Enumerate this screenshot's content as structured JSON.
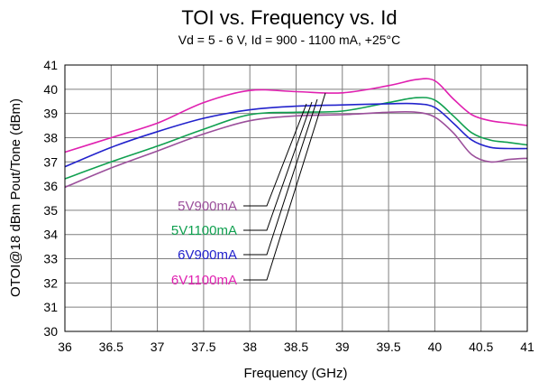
{
  "chart_data": {
    "type": "line",
    "title": "TOI vs. Frequency vs. Id",
    "subtitle": "Vd = 5 - 6 V, Id = 900 - 1100 mA, +25°C",
    "xlabel": "Frequency (GHz)",
    "ylabel": "OTOI@18 dBm Pout/Tone (dBm)",
    "xlim": [
      36,
      41
    ],
    "ylim": [
      30,
      41
    ],
    "xticks": [
      "36",
      "36.5",
      "37",
      "37.5",
      "38",
      "38.5",
      "39",
      "39.5",
      "40",
      "40.5",
      "41"
    ],
    "yticks": [
      "30",
      "31",
      "32",
      "33",
      "34",
      "35",
      "36",
      "37",
      "38",
      "39",
      "40",
      "41"
    ],
    "grid": true,
    "series": [
      {
        "name": "5V900mA",
        "color": "#9b4f9b",
        "x": [
          36,
          36.5,
          37,
          37.5,
          38,
          38.5,
          39,
          39.5,
          39.8,
          40,
          40.2,
          40.4,
          40.6,
          40.8,
          41
        ],
        "y": [
          35.95,
          36.75,
          37.45,
          38.15,
          38.7,
          38.9,
          38.95,
          39.05,
          39.05,
          38.85,
          38.2,
          37.3,
          37.0,
          37.1,
          37.15
        ]
      },
      {
        "name": "5V1100mA",
        "color": "#10a050",
        "x": [
          36,
          36.5,
          37,
          37.5,
          38,
          38.5,
          39,
          39.5,
          39.8,
          40,
          40.2,
          40.4,
          40.6,
          40.8,
          41
        ],
        "y": [
          36.3,
          37.0,
          37.65,
          38.35,
          38.95,
          39.05,
          39.1,
          39.45,
          39.65,
          39.55,
          38.9,
          38.2,
          37.9,
          37.8,
          37.7
        ]
      },
      {
        "name": "6V900mA",
        "color": "#2222cc",
        "x": [
          36,
          36.5,
          37,
          37.5,
          38,
          38.5,
          39,
          39.5,
          39.8,
          40,
          40.2,
          40.4,
          40.6,
          40.8,
          41
        ],
        "y": [
          36.8,
          37.6,
          38.25,
          38.8,
          39.15,
          39.3,
          39.35,
          39.4,
          39.4,
          39.25,
          38.6,
          37.9,
          37.6,
          37.55,
          37.55
        ]
      },
      {
        "name": "6V1100mA",
        "color": "#e020b0",
        "x": [
          36,
          36.5,
          37,
          37.5,
          38,
          38.5,
          39,
          39.5,
          39.8,
          40,
          40.2,
          40.4,
          40.6,
          40.8,
          41
        ],
        "y": [
          37.4,
          38.0,
          38.6,
          39.45,
          39.95,
          39.9,
          39.85,
          40.15,
          40.4,
          40.35,
          39.6,
          38.95,
          38.7,
          38.6,
          38.5
        ]
      }
    ]
  }
}
